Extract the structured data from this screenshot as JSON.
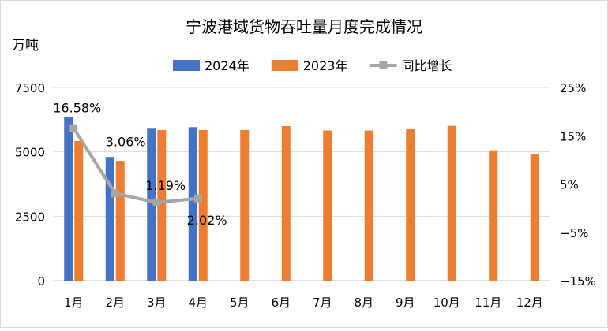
{
  "chart_data": {
    "type": "bar",
    "title": "宁波港域货物吞吐量月度完成情况",
    "ylabel": "万吨",
    "categories": [
      "1月",
      "2月",
      "3月",
      "4月",
      "5月",
      "6月",
      "7月",
      "8月",
      "9月",
      "10月",
      "11月",
      "12月"
    ],
    "ylim": [
      0,
      7500
    ],
    "yticks": [
      0,
      2500,
      5000,
      7500
    ],
    "y2lim": [
      -15,
      25
    ],
    "y2ticks": [
      "-15%",
      "-5%",
      "5%",
      "15%",
      "25%"
    ],
    "legend_position": "top",
    "grid": true,
    "series": [
      {
        "name": "2024年",
        "type": "bar",
        "axis": "left",
        "color": "#4472C4",
        "values": [
          6340,
          4800,
          5900,
          5960,
          null,
          null,
          null,
          null,
          null,
          null,
          null,
          null
        ]
      },
      {
        "name": "2023年",
        "type": "bar",
        "axis": "left",
        "color": "#ED7D31",
        "values": [
          5420,
          4650,
          5850,
          5850,
          5850,
          6000,
          5830,
          5830,
          5880,
          6010,
          5060,
          4930
        ]
      },
      {
        "name": "同比增长",
        "type": "line",
        "axis": "right",
        "color": "#A5A5A5",
        "values": [
          16.58,
          3.06,
          1.19,
          2.02,
          null,
          null,
          null,
          null,
          null,
          null,
          null,
          null
        ],
        "labels": [
          "16.58%",
          "3.06%",
          "1.19%",
          "2.02%",
          null,
          null,
          null,
          null,
          null,
          null,
          null,
          null
        ]
      }
    ]
  }
}
